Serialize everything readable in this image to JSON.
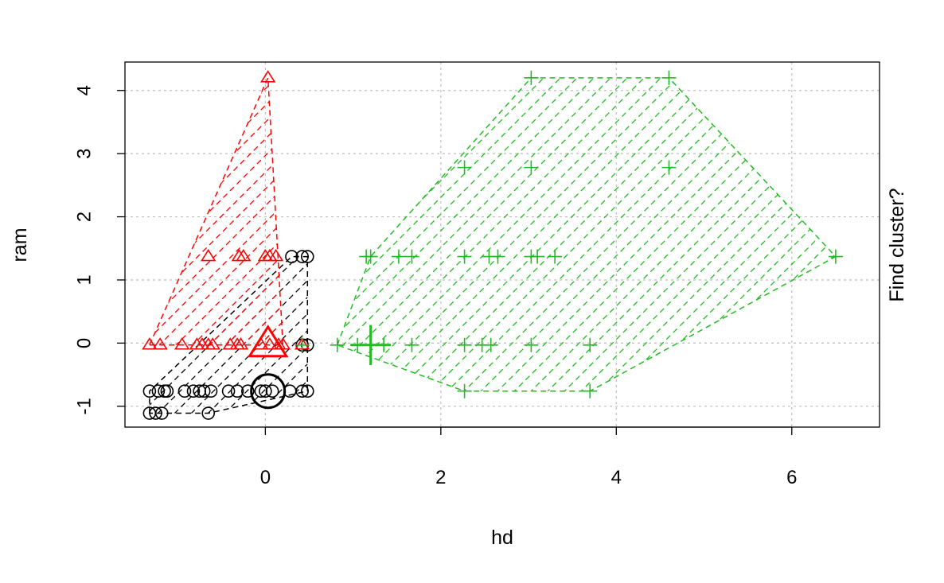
{
  "chart_data": {
    "type": "scatter",
    "title": "",
    "xlabel": "hd",
    "ylabel": "ram",
    "right_label": "Find cluster?",
    "xlim": [
      -1.6,
      7.0
    ],
    "ylim": [
      -1.33,
      4.45
    ],
    "x_ticks": [
      0,
      2,
      4,
      6
    ],
    "y_ticks": [
      -1,
      0,
      1,
      2,
      3,
      4
    ],
    "grid": true,
    "grid_color": "#bebebe",
    "clusters": [
      {
        "color": "#000000",
        "marker": "circle",
        "center": [
          0.03,
          -0.76
        ],
        "hull": [
          [
            -1.32,
            -1.11
          ],
          [
            -1.32,
            -0.76
          ],
          [
            0.3,
            1.37
          ],
          [
            0.48,
            1.37
          ],
          [
            0.48,
            -0.76
          ],
          [
            -0.65,
            -1.11
          ]
        ],
        "points": [
          [
            -1.32,
            -1.11
          ],
          [
            -1.25,
            -1.11
          ],
          [
            -1.18,
            -1.11
          ],
          [
            -0.65,
            -1.11
          ],
          [
            -1.32,
            -0.76
          ],
          [
            -1.22,
            -0.76
          ],
          [
            -1.15,
            -0.76
          ],
          [
            -1.12,
            -0.76
          ],
          [
            -0.92,
            -0.76
          ],
          [
            -0.82,
            -0.76
          ],
          [
            -0.75,
            -0.76
          ],
          [
            -0.7,
            -0.76
          ],
          [
            -0.62,
            -0.76
          ],
          [
            -0.42,
            -0.76
          ],
          [
            -0.32,
            -0.76
          ],
          [
            -0.2,
            -0.76
          ],
          [
            -0.05,
            -0.76
          ],
          [
            0.0,
            -0.76
          ],
          [
            0.08,
            -0.76
          ],
          [
            0.28,
            -0.76
          ],
          [
            0.42,
            -0.76
          ],
          [
            0.48,
            -0.76
          ],
          [
            0.3,
            1.37
          ],
          [
            0.42,
            1.37
          ],
          [
            0.48,
            1.37
          ],
          [
            0.42,
            -0.03
          ],
          [
            0.48,
            -0.03
          ]
        ]
      },
      {
        "color": "#ff0000",
        "marker": "triangle",
        "center": [
          0.03,
          -0.03
        ],
        "hull": [
          [
            -1.32,
            -0.03
          ],
          [
            0.03,
            4.2
          ],
          [
            0.2,
            -0.03
          ]
        ],
        "points": [
          [
            -1.32,
            -0.03
          ],
          [
            -1.2,
            -0.03
          ],
          [
            -0.95,
            -0.03
          ],
          [
            -0.78,
            -0.03
          ],
          [
            -0.72,
            -0.03
          ],
          [
            -0.65,
            -0.03
          ],
          [
            -0.6,
            -0.03
          ],
          [
            -0.4,
            -0.03
          ],
          [
            -0.32,
            -0.03
          ],
          [
            -0.28,
            -0.03
          ],
          [
            -0.05,
            -0.03
          ],
          [
            0.05,
            -0.03
          ],
          [
            0.15,
            -0.03
          ],
          [
            0.2,
            -0.03
          ],
          [
            0.03,
            4.2
          ],
          [
            -0.65,
            1.37
          ],
          [
            -0.3,
            1.37
          ],
          [
            -0.25,
            1.37
          ],
          [
            0.0,
            1.37
          ],
          [
            0.05,
            1.37
          ],
          [
            0.12,
            1.37
          ],
          [
            0.42,
            -0.03
          ]
        ]
      },
      {
        "color": "#22bb22",
        "marker": "plus",
        "center": [
          1.2,
          -0.03
        ],
        "hull": [
          [
            0.82,
            -0.03
          ],
          [
            1.2,
            1.37
          ],
          [
            3.03,
            4.2
          ],
          [
            4.6,
            4.2
          ],
          [
            6.5,
            1.37
          ],
          [
            3.7,
            -0.76
          ],
          [
            2.27,
            -0.76
          ]
        ],
        "points": [
          [
            0.82,
            -0.03
          ],
          [
            1.05,
            -0.03
          ],
          [
            1.2,
            -0.03
          ],
          [
            1.35,
            -0.03
          ],
          [
            1.67,
            -0.03
          ],
          [
            2.27,
            -0.03
          ],
          [
            2.47,
            -0.03
          ],
          [
            2.57,
            -0.03
          ],
          [
            3.03,
            -0.03
          ],
          [
            3.7,
            -0.03
          ],
          [
            2.27,
            -0.76
          ],
          [
            3.7,
            -0.76
          ],
          [
            1.15,
            1.37
          ],
          [
            1.2,
            1.37
          ],
          [
            1.52,
            1.37
          ],
          [
            1.67,
            1.37
          ],
          [
            2.27,
            1.37
          ],
          [
            2.55,
            1.37
          ],
          [
            2.65,
            1.37
          ],
          [
            3.03,
            1.37
          ],
          [
            3.1,
            1.37
          ],
          [
            3.3,
            1.37
          ],
          [
            6.5,
            1.37
          ],
          [
            2.27,
            2.78
          ],
          [
            3.03,
            2.78
          ],
          [
            4.6,
            2.78
          ],
          [
            3.03,
            4.2
          ],
          [
            4.6,
            4.2
          ],
          [
            0.42,
            -0.03
          ]
        ]
      }
    ]
  }
}
